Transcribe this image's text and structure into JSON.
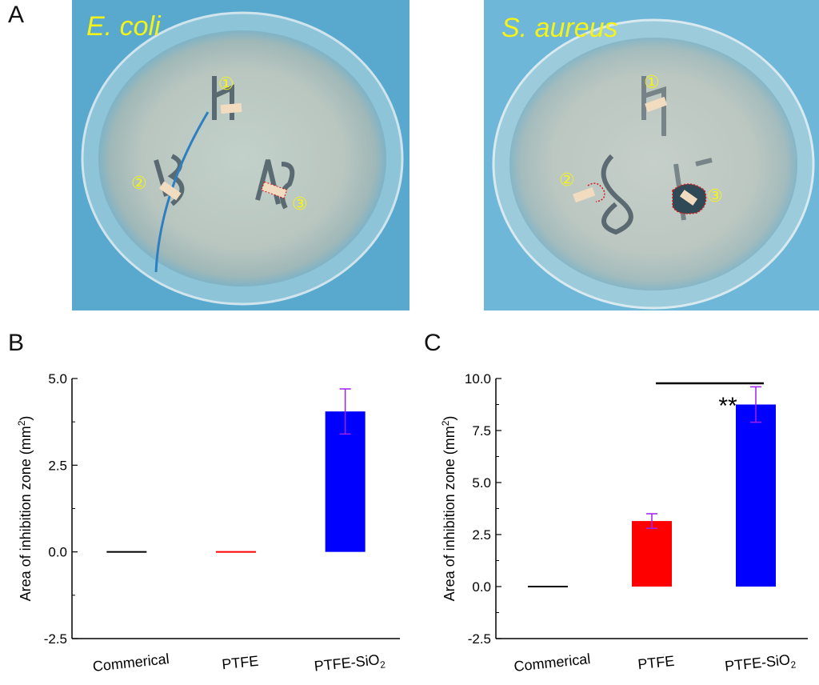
{
  "panels": {
    "A": {
      "letter": "A",
      "photos": [
        {
          "species": "E. coli",
          "markers": [
            "①",
            "②",
            "③"
          ]
        },
        {
          "species": "S. aureus",
          "markers": [
            "①",
            "②",
            "③"
          ]
        }
      ]
    },
    "B": {
      "letter": "B"
    },
    "C": {
      "letter": "C"
    }
  },
  "colors": {
    "background_blue": "#59a9cf",
    "label_yellow": "#f3f31a",
    "marker_outline": "#d8181a",
    "error_bar": "#a020f0"
  },
  "chart_data": [
    {
      "panel": "B",
      "type": "bar",
      "categories": [
        "Commerical",
        "PTFE",
        "PTFE-SiO2"
      ],
      "values": [
        0.0,
        0.0,
        4.05
      ],
      "errors": [
        0.0,
        0.0,
        0.65
      ],
      "colors": [
        "#000000",
        "#ff0000",
        "#0000ff"
      ],
      "ylabel": "Area of  inhibition zone (mm2)",
      "ylim": [
        -2.5,
        5.0
      ],
      "yticks": [
        "5.0",
        "2.5",
        "0.0",
        "-2.5"
      ],
      "annotations": []
    },
    {
      "panel": "C",
      "type": "bar",
      "categories": [
        "Commerical",
        "PTFE",
        "PTFE-SiO2"
      ],
      "values": [
        0.0,
        3.15,
        8.75
      ],
      "errors": [
        0.0,
        0.35,
        0.85
      ],
      "colors": [
        "#000000",
        "#ff0000",
        "#0000ff"
      ],
      "ylabel": "Area of  inhibition zone (mm2)",
      "ylim": [
        -2.5,
        10.0
      ],
      "yticks": [
        "10.0",
        "7.5",
        "5.0",
        "2.5",
        "0.0",
        "-2.5"
      ],
      "annotations": [
        "**"
      ]
    }
  ]
}
